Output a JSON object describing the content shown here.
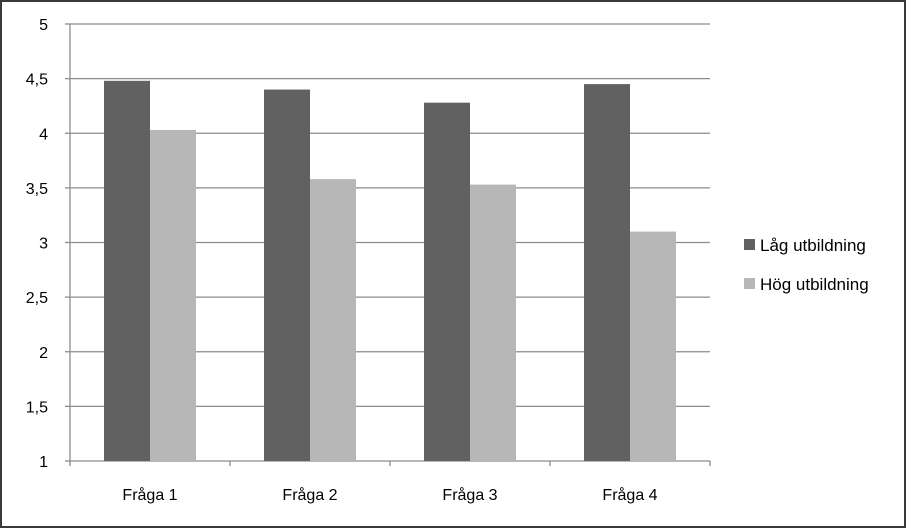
{
  "chart_data": {
    "type": "bar",
    "title": "",
    "xlabel": "",
    "ylabel": "",
    "categories": [
      "Fråga 1",
      "Fråga 2",
      "Fråga 3",
      "Fråga 4"
    ],
    "series": [
      {
        "name": "Låg utbildning",
        "values": [
          4.48,
          4.4,
          4.28,
          4.45
        ],
        "color": "#616161"
      },
      {
        "name": "Hög utbildning",
        "values": [
          4.03,
          3.58,
          3.53,
          3.1
        ],
        "color": "#b7b7b7"
      }
    ],
    "ylim": [
      1,
      5
    ],
    "yticks": [
      "1",
      "1,5",
      "2",
      "2,5",
      "3",
      "3,5",
      "4",
      "4,5",
      "5"
    ],
    "grid": true,
    "legend_position": "right"
  }
}
